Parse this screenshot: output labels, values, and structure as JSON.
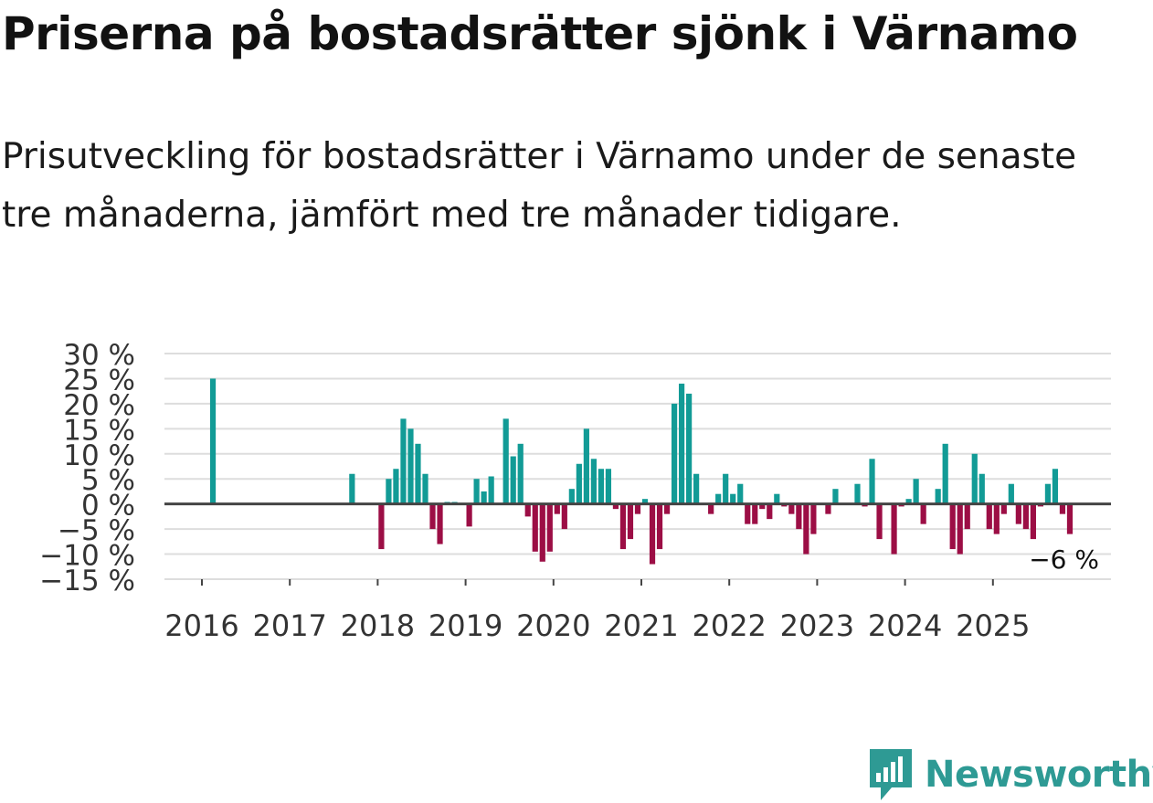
{
  "header": {
    "title": "Priserna på bostadsrätter sjönk i Värnamo",
    "subtitle": "Prisutveckling för bostadsrätter i Värnamo under de senaste tre månaderna, jämfört med tre månader tidigare."
  },
  "colors": {
    "positive": "#129b96",
    "negative": "#9c0e45",
    "grid": "#dddddd",
    "zero_line": "#444444",
    "text": "#333333",
    "brand": "#2e9a94"
  },
  "chart_data": {
    "type": "bar",
    "title": "Priserna på bostadsrätter sjönk i Värnamo",
    "xlabel": "",
    "ylabel": "",
    "ylim": [
      -15,
      30
    ],
    "y_ticks": [
      30,
      25,
      20,
      15,
      10,
      5,
      0,
      -5,
      -10,
      -15
    ],
    "y_tick_labels": [
      "30 %",
      "25 %",
      "20 %",
      "15 %",
      "10 %",
      "5 %",
      "0 %",
      "−5 %",
      "−10 %",
      "−15 %"
    ],
    "x_tick_labels": [
      "2016",
      "2017",
      "2018",
      "2019",
      "2020",
      "2021",
      "2022",
      "2023",
      "2024",
      "2025"
    ],
    "first_year": 2016,
    "months_per_year": 12,
    "unit": "%",
    "values": [
      0,
      25,
      0,
      0,
      0,
      0,
      0,
      0,
      0,
      0,
      0,
      0,
      0,
      0,
      0,
      0,
      0,
      0,
      0,
      0,
      6,
      0,
      0,
      0,
      -9,
      5,
      7,
      17,
      15,
      12,
      6,
      -5,
      -8,
      0.4,
      0.4,
      0,
      -4.5,
      5,
      2.5,
      5.5,
      0,
      17,
      9.5,
      12,
      -2.5,
      -9.5,
      -11.5,
      -9.5,
      -2,
      -5,
      3,
      8,
      15,
      9,
      7,
      7,
      -1,
      -9,
      -7,
      -2,
      1,
      -12,
      -9,
      -2,
      20,
      24,
      22,
      6,
      0,
      -2,
      2,
      6,
      2,
      4,
      -4,
      -4,
      -1,
      -3,
      2,
      -0.5,
      -2,
      -5,
      -10,
      -6,
      0,
      -2,
      3,
      0,
      0,
      4,
      -0.5,
      9,
      -7,
      0,
      -10,
      -0.5,
      1,
      5,
      -4,
      0,
      3,
      12,
      -9,
      -10,
      -5,
      10,
      6,
      -5,
      -6,
      -2,
      4,
      -4,
      -5,
      -7,
      -0.5,
      4,
      7,
      -2,
      -6
    ],
    "last_value_label": "−6 %"
  },
  "brand": {
    "name": "Newsworthy",
    "icon": "newsworthy-logo-icon"
  }
}
